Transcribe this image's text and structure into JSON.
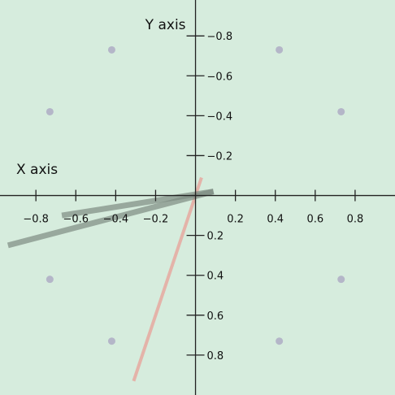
{
  "chart_data": {
    "type": "scatter",
    "xlabel": "X axis",
    "ylabel": "Y axis",
    "xlim": [
      -0.98,
      1.0
    ],
    "ylim": [
      -0.98,
      1.0
    ],
    "y_axis_inverted": true,
    "grid": false,
    "background": "#d6ecdd",
    "x_ticks": [
      {
        "value": -0.8,
        "label": "−0.8"
      },
      {
        "value": -0.6,
        "label": "−0.6"
      },
      {
        "value": -0.4,
        "label": "−0.4"
      },
      {
        "value": -0.2,
        "label": "−0.2"
      },
      {
        "value": 0.2,
        "label": "0.2"
      },
      {
        "value": 0.4,
        "label": "0.4"
      },
      {
        "value": 0.6,
        "label": "0.6"
      },
      {
        "value": 0.8,
        "label": "0.8"
      }
    ],
    "y_ticks": [
      {
        "value": -0.8,
        "label": "−0.8"
      },
      {
        "value": -0.6,
        "label": "−0.6"
      },
      {
        "value": -0.4,
        "label": "−0.4"
      },
      {
        "value": -0.2,
        "label": "−0.2"
      },
      {
        "value": 0.2,
        "label": "0.2"
      },
      {
        "value": 0.4,
        "label": "0.4"
      },
      {
        "value": 0.6,
        "label": "0.6"
      },
      {
        "value": 0.8,
        "label": "0.8"
      }
    ],
    "points": {
      "color": "#b4b6c8",
      "values": [
        {
          "x": -0.42,
          "y": -0.73
        },
        {
          "x": 0.42,
          "y": -0.73
        },
        {
          "x": -0.73,
          "y": -0.42
        },
        {
          "x": 0.73,
          "y": -0.42
        },
        {
          "x": -0.73,
          "y": 0.42
        },
        {
          "x": 0.73,
          "y": 0.42
        },
        {
          "x": -0.42,
          "y": 0.73
        },
        {
          "x": 0.42,
          "y": 0.73
        }
      ]
    },
    "segments": [
      {
        "color": "#e6a9a0",
        "opacity": 0.85,
        "width": 4,
        "x1": 0.03,
        "y1": -0.09,
        "x2": -0.31,
        "y2": 0.93
      },
      {
        "color": "#7e8c82",
        "opacity": 0.7,
        "width": 7,
        "x1": 0.09,
        "y1": -0.02,
        "x2": -0.94,
        "y2": 0.25
      },
      {
        "color": "#7e8c82",
        "opacity": 0.7,
        "width": 7,
        "x1": 0.09,
        "y1": -0.02,
        "x2": -0.67,
        "y2": 0.1
      }
    ]
  }
}
